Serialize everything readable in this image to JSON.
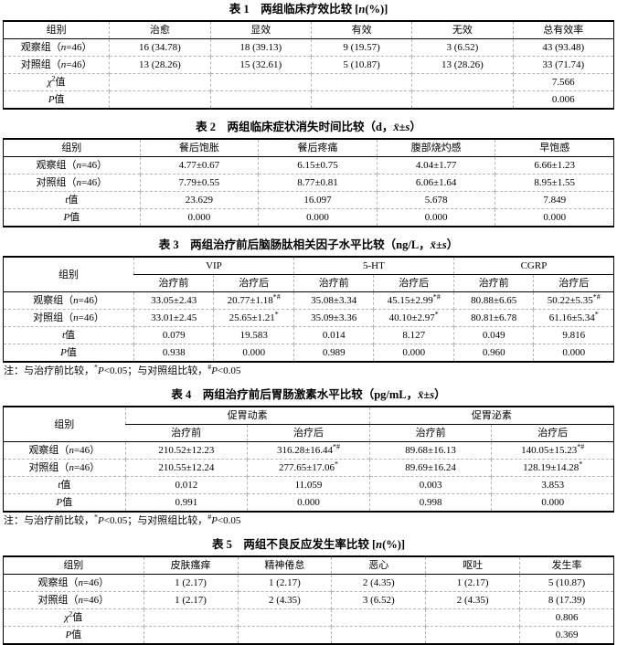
{
  "colors": {
    "text": "#000000",
    "background": "#ffffff",
    "table_border": "#000000",
    "inner_divider": "#b5b5b5"
  },
  "tables": [
    {
      "title": "表 1　两组临床疗效比较 [_{n}(%)]",
      "columns": [
        "组别",
        "治愈",
        "显效",
        "有效",
        "无效",
        "总有效率"
      ],
      "rows": [
        [
          "观察组（_{n}=46）",
          "16 (34.78)",
          "18 (39.13)",
          "9 (19.57)",
          "3 (6.52)",
          "43 (93.48)"
        ],
        [
          "对照组（_{n}=46）",
          "13 (28.26)",
          "15 (32.61)",
          "5 (10.87)",
          "13 (28.26)",
          "33 (71.74)"
        ],
        [
          "_{χ}^{2}值",
          "",
          "",
          "",
          "",
          "7.566"
        ],
        [
          "_{P}值",
          "",
          "",
          "",
          "",
          "0.006"
        ]
      ]
    },
    {
      "title": "表 2　两组临床症状消失时间比较（d，_{x̄}±_{s}）",
      "columns": [
        "组别",
        "餐后饱胀",
        "餐后疼痛",
        "腹部烧灼感",
        "早饱感"
      ],
      "rows": [
        [
          "观察组（_{n}=46）",
          "4.77±0.67",
          "6.15±0.75",
          "4.04±1.77",
          "6.66±1.23"
        ],
        [
          "对照组（_{n}=46）",
          "7.79±0.55",
          "8.77±0.81",
          "6.06±1.64",
          "8.95±1.55"
        ],
        [
          "_{t}值",
          "23.629",
          "16.097",
          "5.678",
          "7.849"
        ],
        [
          "_{P}值",
          "0.000",
          "0.000",
          "0.000",
          "0.000"
        ]
      ]
    },
    {
      "title": "表 3　两组治疗前后脑肠肽相关因子水平比较（ng/L，_{x̄}±_{s}）",
      "row_header_label": "组别",
      "groups": [
        {
          "label": "VIP",
          "sub": [
            "治疗前",
            "治疗后"
          ]
        },
        {
          "label": "5-HT",
          "sub": [
            "治疗前",
            "治疗后"
          ]
        },
        {
          "label": "CGRP",
          "sub": [
            "治疗前",
            "治疗后"
          ]
        }
      ],
      "rows": [
        [
          "观察组（_{n}=46）",
          "33.05±2.43",
          "20.77±1.18^{*#}",
          "35.08±3.34",
          "45.15±2.99^{*#}",
          "80.88±6.65",
          "50.22±5.35^{*#}"
        ],
        [
          "对照组（_{n}=46）",
          "33.01±2.45",
          "25.65±1.21^{*}",
          "35.09±3.36",
          "40.10±2.97^{*}",
          "80.81±6.78",
          "61.16±5.34^{*}"
        ],
        [
          "_{t}值",
          "0.079",
          "19.583",
          "0.014",
          "8.127",
          "0.049",
          "9.816"
        ],
        [
          "_{P}值",
          "0.938",
          "0.000",
          "0.989",
          "0.000",
          "0.960",
          "0.000"
        ]
      ],
      "note": "注：与治疗前比较，^{*}_{P}<0.05；与对照组比较，^{#}_{P}<0.05"
    },
    {
      "title": "表 4　两组治疗前后胃肠激素水平比较（pg/mL，_{x̄}±_{s}）",
      "row_header_label": "组别",
      "groups": [
        {
          "label": "促胃动素",
          "sub": [
            "治疗前",
            "治疗后"
          ]
        },
        {
          "label": "促胃泌素",
          "sub": [
            "治疗前",
            "治疗后"
          ]
        }
      ],
      "rows": [
        [
          "观察组（_{n}=46）",
          "210.52±12.23",
          "316.28±16.44^{*#}",
          "89.68±16.13",
          "140.05±15.23^{*#}"
        ],
        [
          "对照组（_{n}=46）",
          "210.55±12.24",
          "277.65±17.06^{*}",
          "89.69±16.24",
          "128.19±14.28^{*}"
        ],
        [
          "_{t}值",
          "0.012",
          "11.059",
          "0.003",
          "3.853"
        ],
        [
          "_{P}值",
          "0.991",
          "0.000",
          "0.998",
          "0.000"
        ]
      ],
      "note": "注：与治疗前比较，^{*}_{P}<0.05；与对照组比较，^{#}_{P}<0.05"
    },
    {
      "title": "表 5　两组不良反应发生率比较 [_{n}(%)]",
      "columns": [
        "组别",
        "皮肤瘙痒",
        "精神倦怠",
        "恶心",
        "呕吐",
        "发生率"
      ],
      "rows": [
        [
          "观察组（_{n}=46）",
          "1 (2.17)",
          "1 (2.17)",
          "2 (4.35)",
          "1 (2.17)",
          "5 (10.87)"
        ],
        [
          "对照组（_{n}=46）",
          "1 (2.17)",
          "2 (4.35)",
          "3 (6.52)",
          "2 (4.35)",
          "8 (17.39)"
        ],
        [
          "_{χ}^{2}值",
          "",
          "",
          "",
          "",
          "0.806"
        ],
        [
          "_{P}值",
          "",
          "",
          "",
          "",
          "0.369"
        ]
      ]
    }
  ]
}
